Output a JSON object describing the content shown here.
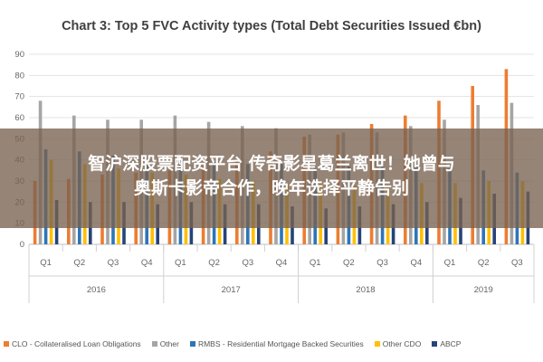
{
  "banner": {
    "line1": "智沪深股票配资平台 传奇影星葛兰离世！她曾与",
    "line2": "奥斯卡影帝合作，晚年选择平静告别"
  },
  "chart_data": {
    "type": "bar",
    "title": "Chart 3: Top 5 FVC Activity types (Total Debt Securities Issued €bn)",
    "xlabel": "",
    "ylabel": "",
    "ylim": [
      0,
      90
    ],
    "yticks": [
      0,
      10,
      20,
      30,
      40,
      50,
      60,
      70,
      80,
      90
    ],
    "grid": true,
    "legend_position": "bottom",
    "years": [
      "2016",
      "2017",
      "2018",
      "2019"
    ],
    "categories": [
      "Q1",
      "Q2",
      "Q3",
      "Q4",
      "Q1",
      "Q2",
      "Q3",
      "Q4",
      "Q1",
      "Q2",
      "Q3",
      "Q4",
      "Q1",
      "Q2",
      "Q3"
    ],
    "series": [
      {
        "name": "CLO - Collateralised Loan Obligations",
        "color": "#ed7d31",
        "values": [
          30,
          31,
          33,
          34,
          35,
          37,
          40,
          44,
          51,
          52,
          57,
          61,
          68,
          75,
          83
        ]
      },
      {
        "name": "Other",
        "color": "#a5a5a5",
        "values": [
          68,
          61,
          59,
          59,
          61,
          58,
          56,
          55,
          52,
          53,
          53,
          56,
          59,
          66,
          67
        ]
      },
      {
        "name": "RMBS - Residential Mortgage Backed Securities",
        "color": "#2e75b6",
        "values": [
          45,
          44,
          42,
          41,
          40,
          39,
          38,
          38,
          36,
          37,
          37,
          38,
          36,
          35,
          34
        ]
      },
      {
        "name": "Other CDO",
        "color": "#ffc000",
        "values": [
          40,
          38,
          36,
          34,
          33,
          31,
          30,
          29,
          29,
          28,
          28,
          29,
          29,
          30,
          30
        ]
      },
      {
        "name": "ABCP",
        "color": "#264478",
        "values": [
          21,
          20,
          20,
          19,
          20,
          19,
          19,
          18,
          17,
          18,
          19,
          20,
          22,
          24,
          25
        ]
      }
    ]
  }
}
